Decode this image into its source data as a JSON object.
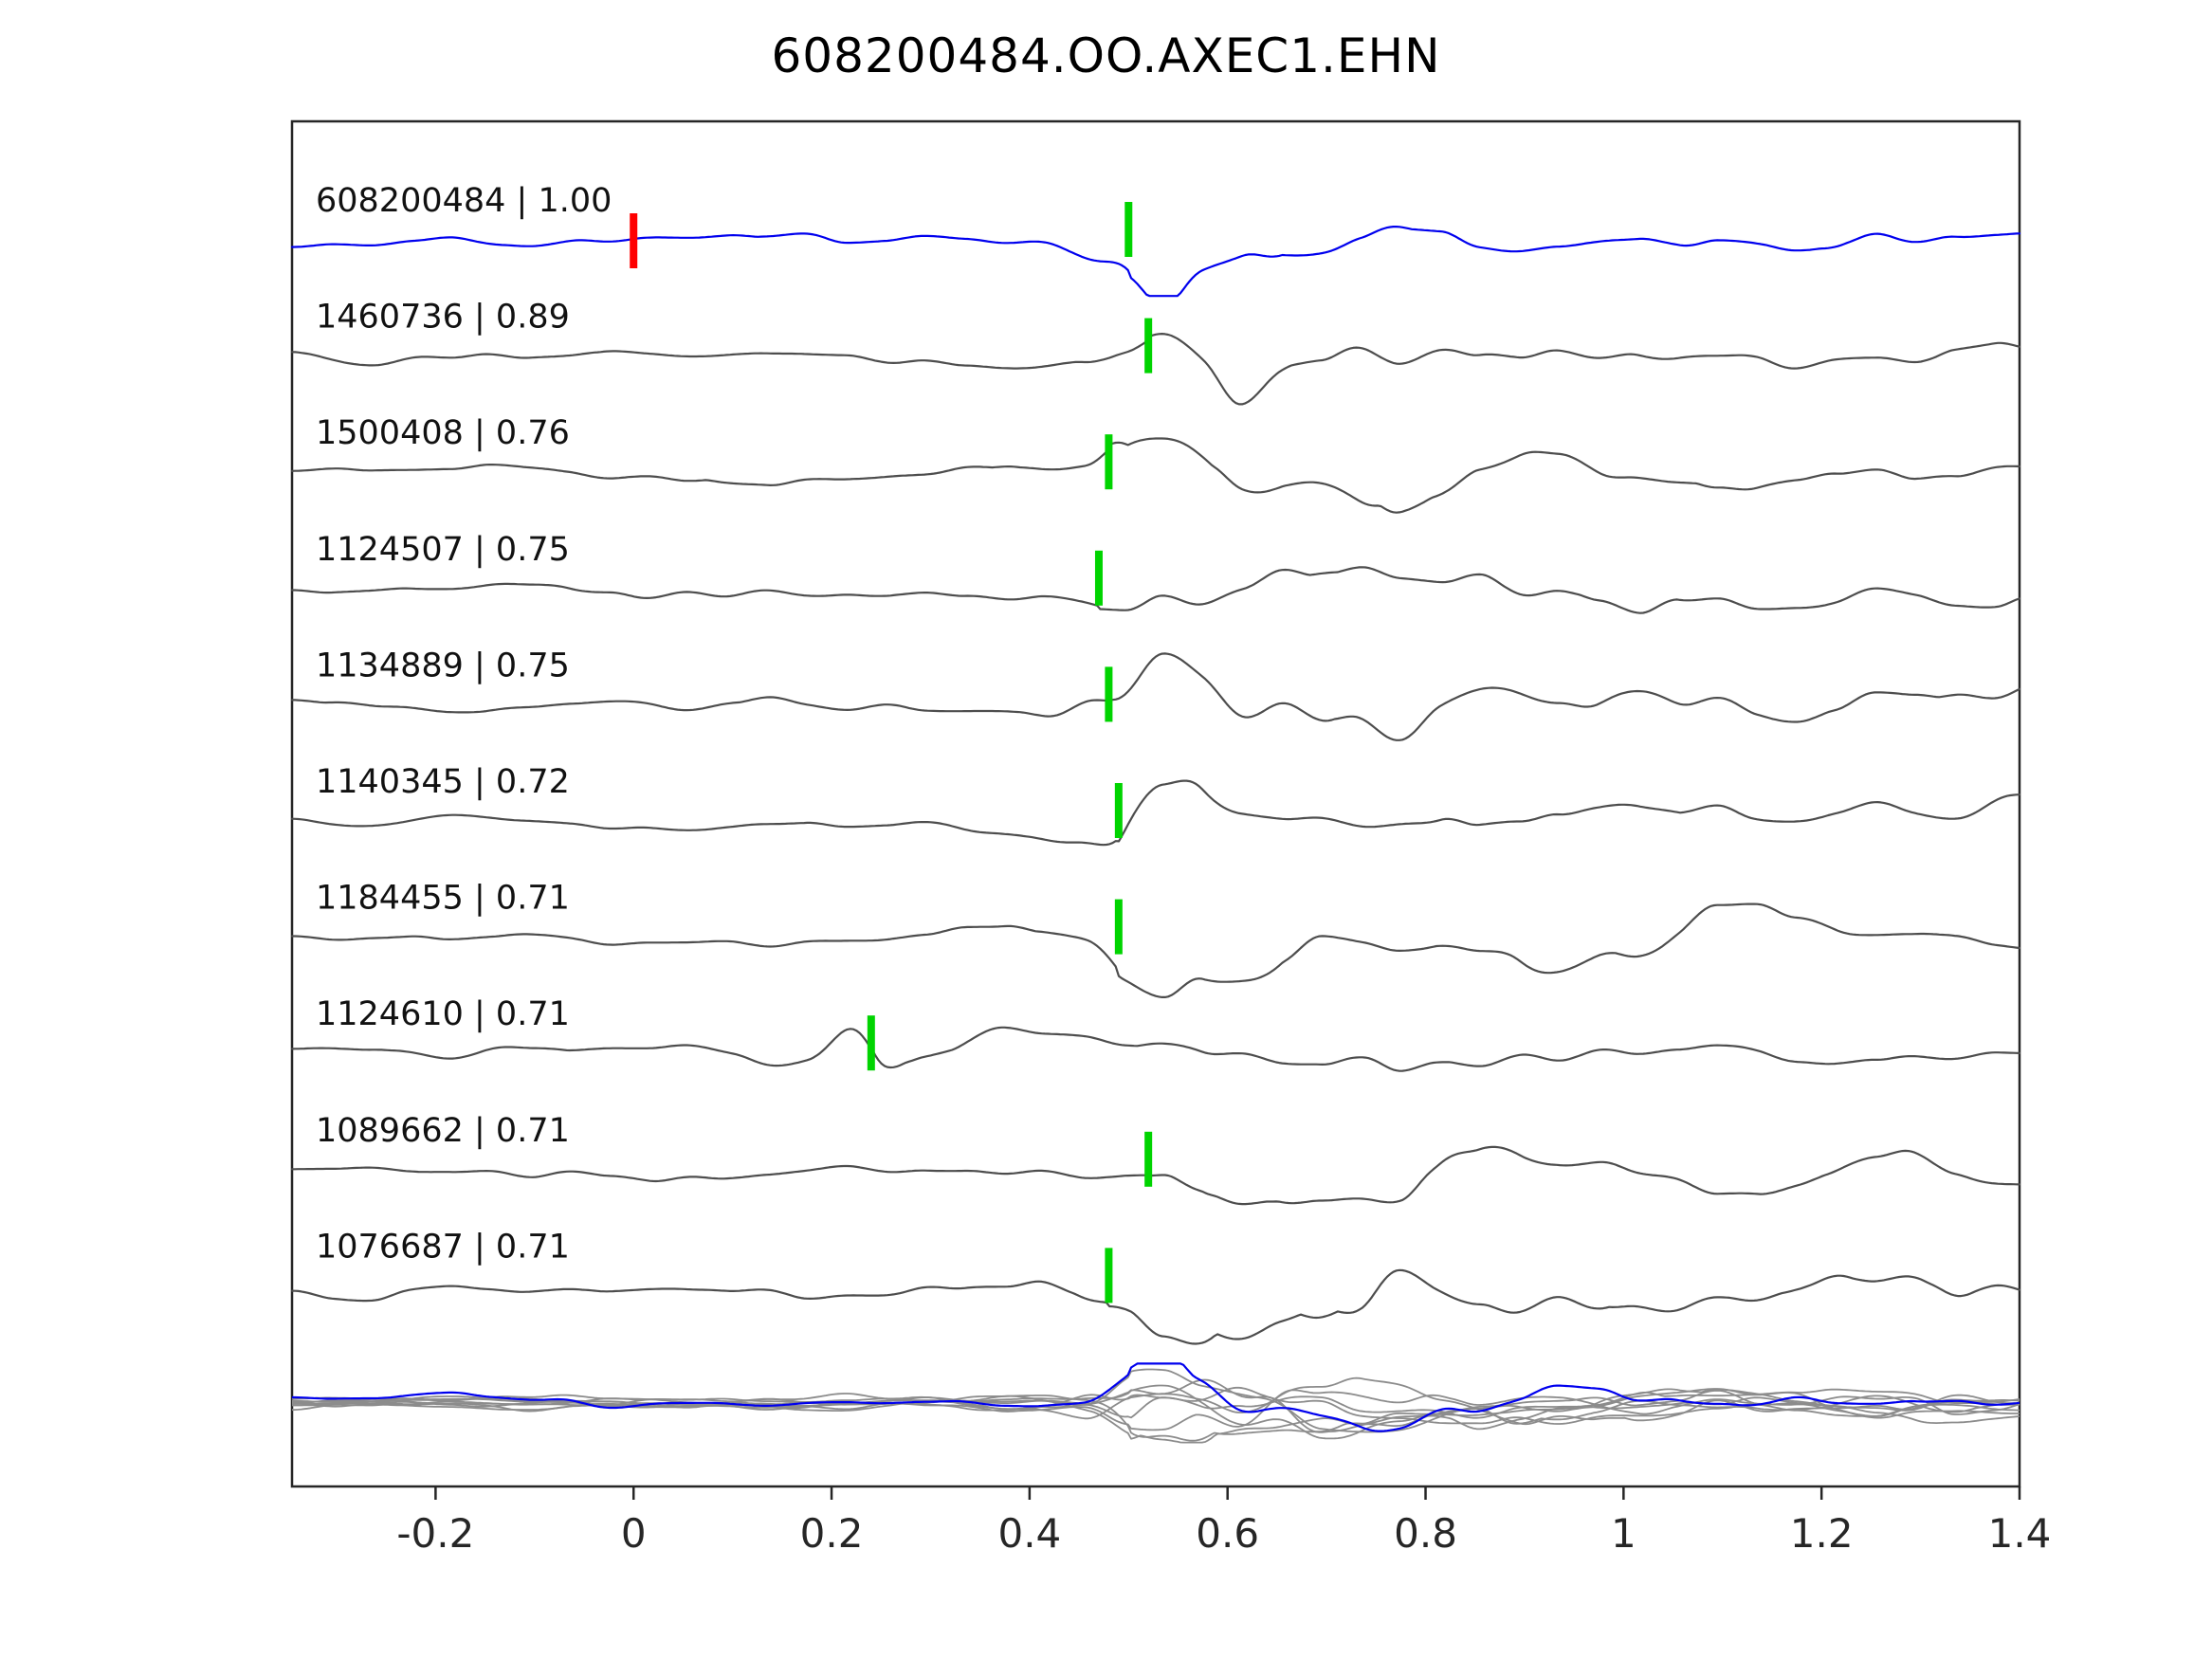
{
  "title": "608200484.OO.AXEC1.EHN",
  "chart_data": {
    "type": "line",
    "title": "608200484.OO.AXEC1.EHN",
    "xlabel": "",
    "ylabel": "",
    "xlim": [
      -0.345,
      1.4
    ],
    "grid": false,
    "legend": "none",
    "x_ticks": [
      {
        "value": -0.2,
        "label": "-0.2"
      },
      {
        "value": 0,
        "label": "0"
      },
      {
        "value": 0.2,
        "label": "0.2"
      },
      {
        "value": 0.4,
        "label": "0.4"
      },
      {
        "value": 0.6,
        "label": "0.6"
      },
      {
        "value": 0.8,
        "label": "0.8"
      },
      {
        "value": 1,
        "label": "1"
      },
      {
        "value": 1.2,
        "label": "1.2"
      },
      {
        "value": 1.4,
        "label": "1.4"
      }
    ],
    "colors": {
      "reference_trace": "#0000ee",
      "match_trace": "#4d4d4d",
      "overlay_trace": "#8c8c8c",
      "pick_marker": "#00d400",
      "reference_marker": "#ff0000",
      "axis": "#262626"
    },
    "reference_marker_time": 0.0,
    "traces": [
      {
        "id": "608200484",
        "correlation": "1.00",
        "label": "608200484 | 1.00",
        "pick_time": 0.5,
        "is_reference": true
      },
      {
        "id": "1460736",
        "correlation": "0.89",
        "label": "1460736 | 0.89",
        "pick_time": 0.52,
        "is_reference": false
      },
      {
        "id": "1500408",
        "correlation": "0.76",
        "label": "1500408 | 0.76",
        "pick_time": 0.48,
        "is_reference": false
      },
      {
        "id": "1124507",
        "correlation": "0.75",
        "label": "1124507 | 0.75",
        "pick_time": 0.47,
        "is_reference": false
      },
      {
        "id": "1134889",
        "correlation": "0.75",
        "label": "1134889 | 0.75",
        "pick_time": 0.48,
        "is_reference": false
      },
      {
        "id": "1140345",
        "correlation": "0.72",
        "label": "1140345 | 0.72",
        "pick_time": 0.49,
        "is_reference": false
      },
      {
        "id": "1184455",
        "correlation": "0.71",
        "label": "1184455 | 0.71",
        "pick_time": 0.49,
        "is_reference": false
      },
      {
        "id": "1124610",
        "correlation": "0.71",
        "label": "1124610 | 0.71",
        "pick_time": 0.24,
        "is_reference": false
      },
      {
        "id": "1089662",
        "correlation": "0.71",
        "label": "1089662 | 0.71",
        "pick_time": 0.52,
        "is_reference": false
      },
      {
        "id": "1076687",
        "correlation": "0.71",
        "label": "1076687 | 0.71",
        "pick_time": 0.48,
        "is_reference": false
      }
    ],
    "overlay_row": {
      "present": true,
      "description": "All matched traces overlaid in gray with blue reference trace, picks aligned near 0.5"
    }
  }
}
